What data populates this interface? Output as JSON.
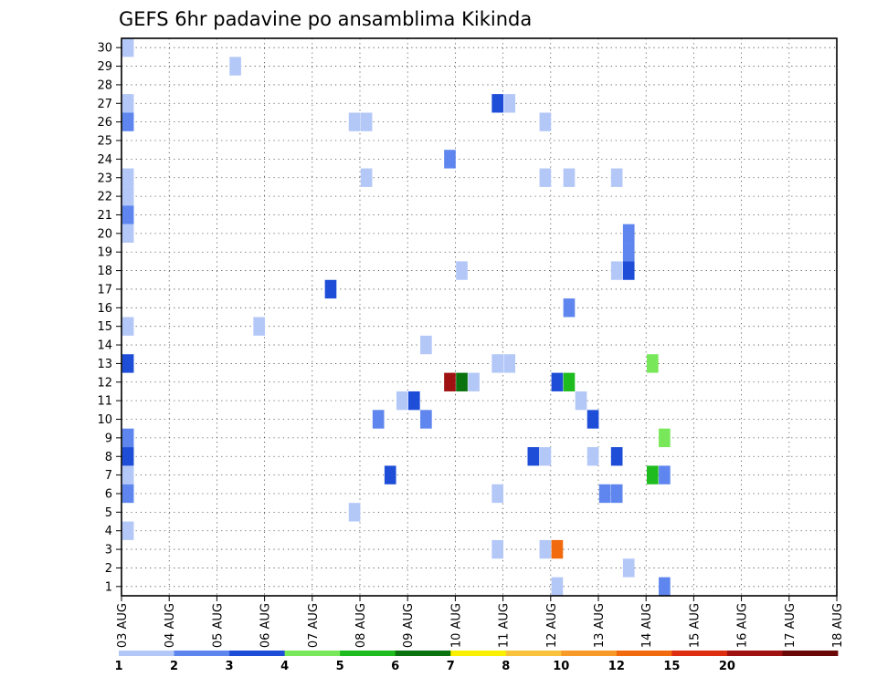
{
  "chart_data": {
    "type": "heatmap",
    "title": "GEFS 6hr padavine po ansamblima Kikinda",
    "xlabel": "",
    "ylabel": "",
    "x_range": [
      0,
      60
    ],
    "y_range": [
      0,
      30
    ],
    "x_tick_labels": [
      "03 AUG",
      "04 AUG",
      "05 AUG",
      "06 AUG",
      "07 AUG",
      "08 AUG",
      "09 AUG",
      "10 AUG",
      "11 AUG",
      "12 AUG",
      "13 AUG",
      "14 AUG",
      "15 AUG",
      "16 AUG",
      "17 AUG",
      "18 AUG"
    ],
    "y_tick_labels": [
      "1",
      "2",
      "3",
      "4",
      "5",
      "6",
      "7",
      "8",
      "9",
      "10",
      "11",
      "12",
      "13",
      "14",
      "15",
      "16",
      "17",
      "18",
      "19",
      "20",
      "21",
      "22",
      "23",
      "24",
      "25",
      "26",
      "27",
      "28",
      "29",
      "30"
    ],
    "grid": true,
    "legend_position": "bottom",
    "color_scale": [
      {
        "label": "1",
        "color": "#b4c8f8"
      },
      {
        "label": "2",
        "color": "#5e86ee"
      },
      {
        "label": "3",
        "color": "#1e4ed8"
      },
      {
        "label": "4",
        "color": "#78e85a"
      },
      {
        "label": "5",
        "color": "#1ebc1e"
      },
      {
        "label": "6",
        "color": "#0a720f"
      },
      {
        "label": "7",
        "color": "#f8f000"
      },
      {
        "label": "8",
        "color": "#f8c23c"
      },
      {
        "label": "10",
        "color": "#f89a28"
      },
      {
        "label": "12",
        "color": "#f26a0e"
      },
      {
        "label": "15",
        "color": "#de2e12"
      },
      {
        "label": "20",
        "color": "#a01212"
      },
      {
        "label": "",
        "color": "#6a0808"
      }
    ],
    "cells": [
      {
        "t": 0,
        "m": 29,
        "c": 0
      },
      {
        "t": 0,
        "m": 26,
        "c": 0
      },
      {
        "t": 0,
        "m": 22,
        "c": 0
      },
      {
        "t": 0,
        "m": 21,
        "c": 0
      },
      {
        "t": 0,
        "m": 19,
        "c": 0
      },
      {
        "t": 0,
        "m": 14,
        "c": 0
      },
      {
        "t": 0,
        "m": 6,
        "c": 0
      },
      {
        "t": 0,
        "m": 3,
        "c": 0
      },
      {
        "t": 0,
        "m": 25,
        "c": 1
      },
      {
        "t": 0,
        "m": 20,
        "c": 1
      },
      {
        "t": 0,
        "m": 8,
        "c": 1
      },
      {
        "t": 0,
        "m": 5,
        "c": 1
      },
      {
        "t": 0,
        "m": 12,
        "c": 2
      },
      {
        "t": 0,
        "m": 7,
        "c": 2
      },
      {
        "t": 9,
        "m": 28,
        "c": 0
      },
      {
        "t": 11,
        "m": 14,
        "c": 0
      },
      {
        "t": 17,
        "m": 16,
        "c": 2
      },
      {
        "t": 19,
        "m": 25,
        "c": 0
      },
      {
        "t": 20,
        "m": 25,
        "c": 0
      },
      {
        "t": 20,
        "m": 22,
        "c": 0
      },
      {
        "t": 19,
        "m": 4,
        "c": 0
      },
      {
        "t": 21,
        "m": 9,
        "c": 1
      },
      {
        "t": 22,
        "m": 6,
        "c": 2
      },
      {
        "t": 23,
        "m": 10,
        "c": 0
      },
      {
        "t": 24,
        "m": 10,
        "c": 2
      },
      {
        "t": 25,
        "m": 13,
        "c": 0
      },
      {
        "t": 25,
        "m": 9,
        "c": 1
      },
      {
        "t": 27,
        "m": 23,
        "c": 1
      },
      {
        "t": 27,
        "m": 11,
        "c": 11
      },
      {
        "t": 28,
        "m": 11,
        "c": 5
      },
      {
        "t": 29,
        "m": 11,
        "c": 0
      },
      {
        "t": 28,
        "m": 17,
        "c": 0
      },
      {
        "t": 31,
        "m": 26,
        "c": 2
      },
      {
        "t": 32,
        "m": 26,
        "c": 0
      },
      {
        "t": 31,
        "m": 12,
        "c": 0
      },
      {
        "t": 32,
        "m": 12,
        "c": 0
      },
      {
        "t": 31,
        "m": 5,
        "c": 0
      },
      {
        "t": 31,
        "m": 2,
        "c": 0
      },
      {
        "t": 34,
        "m": 7,
        "c": 2
      },
      {
        "t": 35,
        "m": 7,
        "c": 0
      },
      {
        "t": 35,
        "m": 25,
        "c": 0
      },
      {
        "t": 35,
        "m": 22,
        "c": 0
      },
      {
        "t": 35,
        "m": 2,
        "c": 0
      },
      {
        "t": 36,
        "m": 2,
        "c": 9
      },
      {
        "t": 36,
        "m": 0,
        "c": 0
      },
      {
        "t": 37,
        "m": 22,
        "c": 0
      },
      {
        "t": 37,
        "m": 15,
        "c": 1
      },
      {
        "t": 36,
        "m": 11,
        "c": 2
      },
      {
        "t": 37,
        "m": 11,
        "c": 4
      },
      {
        "t": 38,
        "m": 10,
        "c": 0
      },
      {
        "t": 39,
        "m": 9,
        "c": 2
      },
      {
        "t": 39,
        "m": 7,
        "c": 0
      },
      {
        "t": 40,
        "m": 5,
        "c": 1
      },
      {
        "t": 41,
        "m": 5,
        "c": 1
      },
      {
        "t": 41,
        "m": 22,
        "c": 0
      },
      {
        "t": 41,
        "m": 17,
        "c": 0
      },
      {
        "t": 41,
        "m": 7,
        "c": 2
      },
      {
        "t": 42,
        "m": 19,
        "c": 1
      },
      {
        "t": 42,
        "m": 18,
        "c": 1
      },
      {
        "t": 42,
        "m": 17,
        "c": 2
      },
      {
        "t": 42,
        "m": 1,
        "c": 0
      },
      {
        "t": 44,
        "m": 12,
        "c": 3
      },
      {
        "t": 44,
        "m": 6,
        "c": 4
      },
      {
        "t": 45,
        "m": 6,
        "c": 1
      },
      {
        "t": 45,
        "m": 8,
        "c": 3
      },
      {
        "t": 45,
        "m": 0,
        "c": 1
      }
    ]
  }
}
